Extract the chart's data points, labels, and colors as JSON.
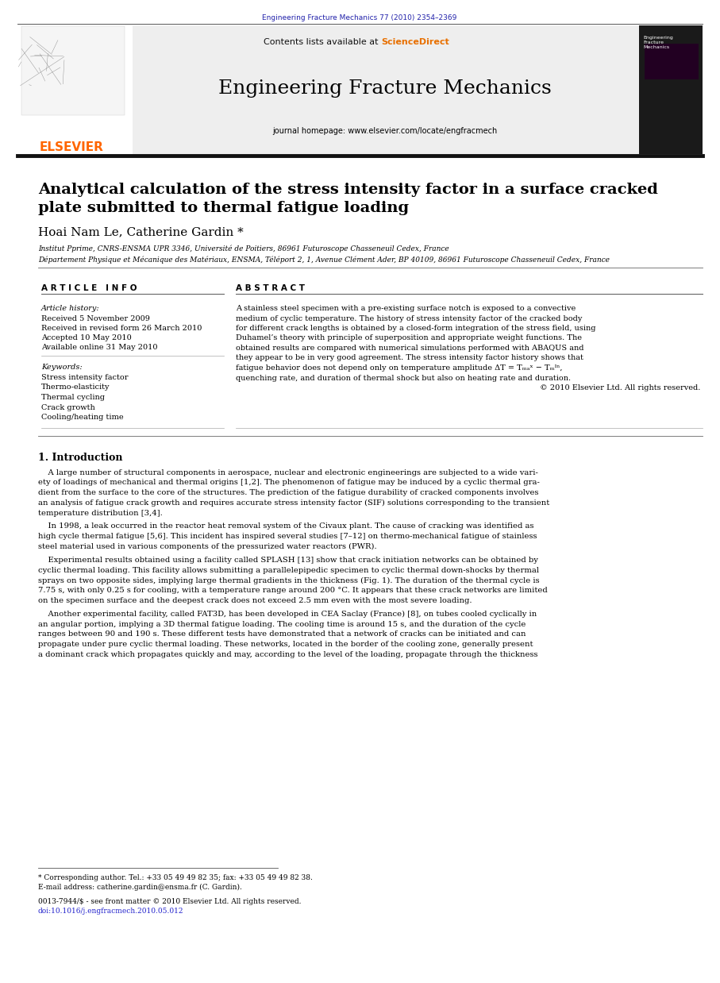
{
  "journal_ref": "Engineering Fracture Mechanics 77 (2010) 2354–2369",
  "journal_ref_color": "#2222aa",
  "journal_name": "Engineering Fracture Mechanics",
  "journal_homepage": "journal homepage: www.elsevier.com/locate/engfracmech",
  "elsevier_color": "#FF6600",
  "paper_title_line1": "Analytical calculation of the stress intensity factor in a surface cracked",
  "paper_title_line2": "plate submitted to thermal fatigue loading",
  "authors": "Hoai Nam Le, Catherine Gardin *",
  "affil1": "Institut Pprime, CNRS-ENSMA UPR 3346, Université de Poitiers, 86961 Futuroscope Chasseneuil Cedex, France",
  "affil2": "Département Physique et Mécanique des Matériaux, ENSMA, Téléport 2, 1, Avenue Clément Ader, BP 40109, 86961 Futuroscope Chasseneuil Cedex, France",
  "article_info_header": "A R T I C L E   I N F O",
  "abstract_header": "A B S T R A C T",
  "article_history_label": "Article history:",
  "received1": "Received 5 November 2009",
  "received2": "Received in revised form 26 March 2010",
  "accepted": "Accepted 10 May 2010",
  "available": "Available online 31 May 2010",
  "keywords_label": "Keywords:",
  "keywords": [
    "Stress intensity factor",
    "Thermo-elasticity",
    "Thermal cycling",
    "Crack growth",
    "Cooling/heating time"
  ],
  "abstract_lines": [
    "A stainless steel specimen with a pre-existing surface notch is exposed to a convective",
    "medium of cyclic temperature. The history of stress intensity factor of the cracked body",
    "for different crack lengths is obtained by a closed-form integration of the stress field, using",
    "Duhamel’s theory with principle of superposition and appropriate weight functions. The",
    "obtained results are compared with numerical simulations performed with ABAQUS and",
    "they appear to be in very good agreement. The stress intensity factor history shows that",
    "fatigue behavior does not depend only on temperature amplitude ΔT = Tₘₐˣ − Tₘᴵⁿ,",
    "quenching rate, and duration of thermal shock but also on heating rate and duration."
  ],
  "copyright": "© 2010 Elsevier Ltd. All rights reserved.",
  "intro_header": "1. Introduction",
  "intro_p1": [
    "    A large number of structural components in aerospace, nuclear and electronic engineerings are subjected to a wide vari-",
    "ety of loadings of mechanical and thermal origins [1,2]. The phenomenon of fatigue may be induced by a cyclic thermal gra-",
    "dient from the surface to the core of the structures. The prediction of the fatigue durability of cracked components involves",
    "an analysis of fatigue crack growth and requires accurate stress intensity factor (SIF) solutions corresponding to the transient",
    "temperature distribution [3,4]."
  ],
  "intro_p2": [
    "    In 1998, a leak occurred in the reactor heat removal system of the Civaux plant. The cause of cracking was identified as",
    "high cycle thermal fatigue [5,6]. This incident has inspired several studies [7–12] on thermo-mechanical fatigue of stainless",
    "steel material used in various components of the pressurized water reactors (PWR)."
  ],
  "intro_p3": [
    "    Experimental results obtained using a facility called SPLASH [13] show that crack initiation networks can be obtained by",
    "cyclic thermal loading. This facility allows submitting a parallelepipedic specimen to cyclic thermal down-shocks by thermal",
    "sprays on two opposite sides, implying large thermal gradients in the thickness (Fig. 1). The duration of the thermal cycle is",
    "7.75 s, with only 0.25 s for cooling, with a temperature range around 200 °C. It appears that these crack networks are limited",
    "on the specimen surface and the deepest crack does not exceed 2.5 mm even with the most severe loading."
  ],
  "intro_p4": [
    "    Another experimental facility, called FAT3D, has been developed in CEA Saclay (France) [8], on tubes cooled cyclically in",
    "an angular portion, implying a 3D thermal fatigue loading. The cooling time is around 15 s, and the duration of the cycle",
    "ranges between 90 and 190 s. These different tests have demonstrated that a network of cracks can be initiated and can",
    "propagate under pure cyclic thermal loading. These networks, located in the border of the cooling zone, generally present",
    "a dominant crack which propagates quickly and may, according to the level of the loading, propagate through the thickness"
  ],
  "footnote_star": "* Corresponding author. Tel.: +33 05 49 49 82 35; fax: +33 05 49 49 82 38.",
  "footnote_email": "E-mail address: catherine.gardin@ensma.fr (C. Gardin).",
  "footnote_issn": "0013-7944/$ - see front matter © 2010 Elsevier Ltd. All rights reserved.",
  "footnote_doi": "doi:10.1016/j.engfracmech.2010.05.012",
  "bg_color": "#ffffff"
}
